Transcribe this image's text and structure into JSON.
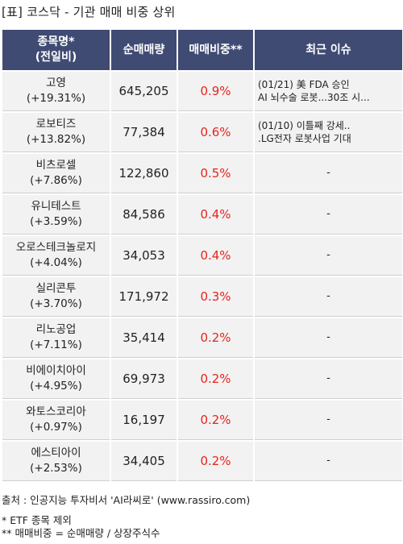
{
  "title": "[표] 코스닥 - 기관 매매 비중 상위",
  "headers": {
    "name_line1": "종목명*",
    "name_line2": "(전일비)",
    "volume": "순매매량",
    "ratio": "매매비중**",
    "issue": "최근 이슈"
  },
  "rows": [
    {
      "name": "고영",
      "change": "(+19.31%)",
      "volume": "645,205",
      "ratio": "0.9%",
      "issue1": "(01/21) 美 FDA 승인",
      "issue2": " AI 뇌수술 로봇...30조 시..."
    },
    {
      "name": "로보티즈",
      "change": "(+13.82%)",
      "volume": "77,384",
      "ratio": "0.6%",
      "issue1": "(01/10) 이틀째 강세..",
      "issue2": ".LG전자 로봇사업 기대"
    },
    {
      "name": "비츠로셀",
      "change": "(+7.86%)",
      "volume": "122,860",
      "ratio": "0.5%",
      "issue1": "-",
      "issue2": ""
    },
    {
      "name": "유니테스트",
      "change": "(+3.59%)",
      "volume": "84,586",
      "ratio": "0.4%",
      "issue1": "-",
      "issue2": ""
    },
    {
      "name": "오로스테크놀로지",
      "change": "(+4.04%)",
      "volume": "34,053",
      "ratio": "0.4%",
      "issue1": "-",
      "issue2": ""
    },
    {
      "name": "실리콘투",
      "change": "(+3.70%)",
      "volume": "171,972",
      "ratio": "0.3%",
      "issue1": "-",
      "issue2": ""
    },
    {
      "name": "리노공업",
      "change": "(+7.11%)",
      "volume": "35,414",
      "ratio": "0.2%",
      "issue1": "-",
      "issue2": ""
    },
    {
      "name": "비에이치아이",
      "change": "(+4.95%)",
      "volume": "69,973",
      "ratio": "0.2%",
      "issue1": "-",
      "issue2": ""
    },
    {
      "name": "와토스코리아",
      "change": "(+0.97%)",
      "volume": "16,197",
      "ratio": "0.2%",
      "issue1": "-",
      "issue2": ""
    },
    {
      "name": "에스티아이",
      "change": "(+2.53%)",
      "volume": "34,405",
      "ratio": "0.2%",
      "issue1": "-",
      "issue2": ""
    }
  ],
  "footer": {
    "source": "출처 : 인공지능 투자비서 'AI라씨로' (www.rassiro.com)",
    "note1": "* ETF 종목 제외",
    "note2": "** 매매비중 = 순매매량 / 상장주식수"
  }
}
